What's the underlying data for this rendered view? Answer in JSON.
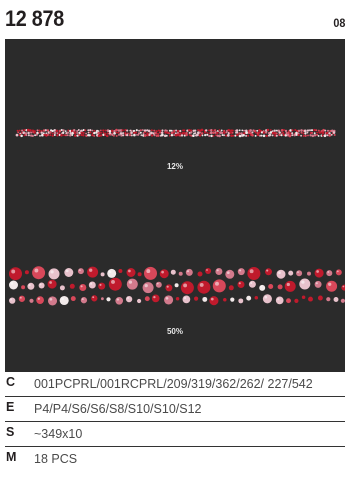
{
  "header": {
    "title": "12 878",
    "page_number": "08"
  },
  "preview": {
    "background": "#2b2b2b",
    "scale_small_label": "12%",
    "scale_large_label": "50%"
  },
  "specs": [
    {
      "key": "C",
      "value": "001PCPRL/001RCPRL/209/319/362/262/ 227/542"
    },
    {
      "key": "E",
      "value": "P4/P4/S6/S6/S8/S10/S10/S12"
    },
    {
      "key": "S",
      "value": "~349x10"
    },
    {
      "key": "M",
      "value": "18 PCS"
    }
  ],
  "colors": {
    "pearl_pink": "#e8c2cc",
    "pearl_rose": "#d27a8c",
    "siam_red": "#c01a2c",
    "light_siam": "#d8485a",
    "crystal": "#f2eaea"
  }
}
